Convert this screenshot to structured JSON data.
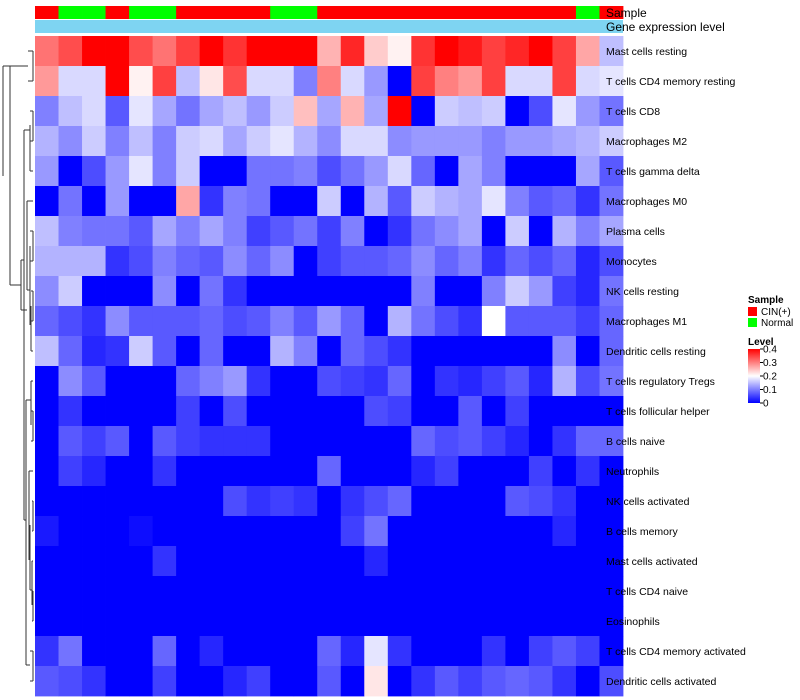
{
  "chart_data": {
    "type": "heatmap",
    "title": "",
    "annotation_labels": {
      "sample": "Sample",
      "gene_expression": "Gene expression level"
    },
    "samples": [
      "CIN(+)",
      "Normal",
      "Normal",
      "CIN(+)",
      "Normal",
      "Normal",
      "CIN(+)",
      "CIN(+)",
      "CIN(+)",
      "CIN(+)",
      "Normal",
      "Normal",
      "CIN(+)",
      "CIN(+)",
      "CIN(+)",
      "CIN(+)",
      "CIN(+)",
      "CIN(+)",
      "CIN(+)",
      "CIN(+)",
      "CIN(+)",
      "CIN(+)",
      "CIN(+)",
      "Normal",
      "CIN(+)"
    ],
    "rows": [
      "Mast cells resting",
      "T cells CD4 memory resting",
      "T cells CD8",
      "Macrophages M2",
      "T cells gamma delta",
      "Macrophages M0",
      "Plasma cells",
      "Monocytes",
      "NK cells resting",
      "Macrophages M1",
      "Dendritic cells resting",
      "T cells regulatory  Tregs",
      "T cells follicular helper",
      "B cells naive",
      "Neutrophils",
      "NK cells activated",
      "B cells memory",
      "Mast cells activated",
      "T cells CD4 naive",
      "Eosinophils",
      "T cells CD4 memory activated",
      "Dendritic cells activated"
    ],
    "values": [
      [
        0.31,
        0.34,
        0.4,
        0.4,
        0.34,
        0.31,
        0.35,
        0.4,
        0.36,
        0.4,
        0.4,
        0.4,
        0.26,
        0.37,
        0.24,
        0.21,
        0.36,
        0.4,
        0.38,
        0.35,
        0.37,
        0.4,
        0.35,
        0.27,
        0.15
      ],
      [
        0.28,
        0.17,
        0.17,
        0.4,
        0.21,
        0.35,
        0.15,
        0.22,
        0.34,
        0.17,
        0.17,
        0.1,
        0.3,
        0.17,
        0.12,
        0.0,
        0.35,
        0.3,
        0.28,
        0.35,
        0.17,
        0.17,
        0.35,
        0.17,
        0.18
      ],
      [
        0.1,
        0.15,
        0.17,
        0.07,
        0.18,
        0.13,
        0.09,
        0.13,
        0.15,
        0.12,
        0.16,
        0.25,
        0.13,
        0.26,
        0.13,
        0.4,
        0.0,
        0.16,
        0.15,
        0.16,
        0.0,
        0.06,
        0.18,
        0.12,
        0.09
      ],
      [
        0.14,
        0.11,
        0.16,
        0.1,
        0.15,
        0.1,
        0.16,
        0.17,
        0.13,
        0.16,
        0.18,
        0.14,
        0.11,
        0.17,
        0.17,
        0.11,
        0.12,
        0.12,
        0.12,
        0.1,
        0.12,
        0.12,
        0.13,
        0.14,
        0.16
      ],
      [
        0.12,
        0.0,
        0.06,
        0.12,
        0.18,
        0.1,
        0.16,
        0.0,
        0.0,
        0.09,
        0.09,
        0.1,
        0.06,
        0.09,
        0.12,
        0.17,
        0.08,
        0.0,
        0.13,
        0.1,
        0.0,
        0.0,
        0.0,
        0.13,
        0.07
      ],
      [
        0.0,
        0.09,
        0.0,
        0.12,
        0.0,
        0.0,
        0.27,
        0.04,
        0.1,
        0.09,
        0.0,
        0.0,
        0.16,
        0.0,
        0.14,
        0.07,
        0.16,
        0.14,
        0.13,
        0.18,
        0.1,
        0.07,
        0.08,
        0.04,
        0.09
      ],
      [
        0.15,
        0.1,
        0.09,
        0.09,
        0.07,
        0.13,
        0.1,
        0.13,
        0.1,
        0.05,
        0.07,
        0.09,
        0.05,
        0.1,
        0.0,
        0.04,
        0.09,
        0.11,
        0.13,
        0.0,
        0.16,
        0.0,
        0.14,
        0.1,
        0.13
      ],
      [
        0.14,
        0.14,
        0.14,
        0.04,
        0.06,
        0.1,
        0.08,
        0.07,
        0.11,
        0.08,
        0.11,
        0.0,
        0.05,
        0.07,
        0.07,
        0.08,
        0.11,
        0.08,
        0.1,
        0.04,
        0.08,
        0.06,
        0.08,
        0.03,
        0.06
      ],
      [
        0.11,
        0.16,
        0.0,
        0.0,
        0.0,
        0.11,
        0.0,
        0.09,
        0.04,
        0.0,
        0.0,
        0.0,
        0.0,
        0.0,
        0.0,
        0.0,
        0.1,
        0.0,
        0.0,
        0.1,
        0.16,
        0.12,
        0.05,
        0.03,
        0.09
      ],
      [
        0.08,
        0.06,
        0.04,
        0.11,
        0.07,
        0.07,
        0.07,
        0.08,
        0.06,
        0.07,
        0.1,
        0.07,
        0.12,
        0.08,
        0.0,
        0.14,
        0.09,
        0.06,
        0.04,
        0.2,
        0.07,
        0.07,
        0.07,
        0.05,
        0.08
      ],
      [
        0.15,
        0.08,
        0.03,
        0.04,
        0.16,
        0.07,
        0.0,
        0.08,
        0.0,
        0.0,
        0.14,
        0.1,
        0.0,
        0.08,
        0.06,
        0.04,
        0.0,
        0.0,
        0.0,
        0.0,
        0.0,
        0.0,
        0.11,
        0.0,
        0.08
      ],
      [
        0.0,
        0.11,
        0.07,
        0.0,
        0.0,
        0.0,
        0.08,
        0.1,
        0.12,
        0.04,
        0.0,
        0.0,
        0.06,
        0.05,
        0.04,
        0.08,
        0.0,
        0.04,
        0.03,
        0.05,
        0.07,
        0.03,
        0.14,
        0.06,
        0.09
      ],
      [
        0.0,
        0.04,
        0.0,
        0.0,
        0.0,
        0.0,
        0.05,
        0.0,
        0.06,
        0.0,
        0.0,
        0.0,
        0.0,
        0.0,
        0.06,
        0.05,
        0.0,
        0.0,
        0.07,
        0.0,
        0.05,
        0.0,
        0.0,
        0.0,
        0.0
      ],
      [
        0.0,
        0.07,
        0.05,
        0.07,
        0.0,
        0.07,
        0.05,
        0.04,
        0.04,
        0.04,
        0.0,
        0.0,
        0.0,
        0.0,
        0.0,
        0.0,
        0.08,
        0.06,
        0.07,
        0.05,
        0.03,
        0.0,
        0.04,
        0.08,
        0.08
      ],
      [
        0.0,
        0.05,
        0.03,
        0.0,
        0.0,
        0.04,
        0.0,
        0.0,
        0.0,
        0.0,
        0.0,
        0.0,
        0.08,
        0.0,
        0.0,
        0.0,
        0.03,
        0.05,
        0.0,
        0.0,
        0.0,
        0.05,
        0.0,
        0.04,
        0.0
      ],
      [
        0.0,
        0.0,
        0.0,
        0.0,
        0.0,
        0.0,
        0.0,
        0.0,
        0.06,
        0.04,
        0.05,
        0.04,
        0.0,
        0.04,
        0.06,
        0.08,
        0.0,
        0.0,
        0.0,
        0.0,
        0.07,
        0.06,
        0.04,
        0.0,
        0.0
      ],
      [
        0.02,
        0.0,
        0.0,
        0.0,
        0.01,
        0.0,
        0.0,
        0.0,
        0.0,
        0.0,
        0.0,
        0.0,
        0.0,
        0.05,
        0.09,
        0.0,
        0.0,
        0.0,
        0.0,
        0.0,
        0.0,
        0.0,
        0.03,
        0.0,
        0.0
      ],
      [
        0.0,
        0.0,
        0.0,
        0.0,
        0.0,
        0.04,
        0.0,
        0.0,
        0.0,
        0.0,
        0.0,
        0.0,
        0.0,
        0.0,
        0.03,
        0.0,
        0.0,
        0.0,
        0.0,
        0.0,
        0.0,
        0.0,
        0.0,
        0.0,
        0.0
      ],
      [
        0.0,
        0.0,
        0.0,
        0.0,
        0.0,
        0.0,
        0.0,
        0.0,
        0.0,
        0.0,
        0.0,
        0.0,
        0.0,
        0.0,
        0.0,
        0.0,
        0.0,
        0.0,
        0.0,
        0.0,
        0.0,
        0.0,
        0.0,
        0.0,
        0.0
      ],
      [
        0.0,
        0.0,
        0.0,
        0.0,
        0.0,
        0.0,
        0.0,
        0.0,
        0.0,
        0.0,
        0.0,
        0.0,
        0.0,
        0.0,
        0.0,
        0.0,
        0.0,
        0.0,
        0.0,
        0.0,
        0.0,
        0.0,
        0.0,
        0.0,
        0.0
      ],
      [
        0.04,
        0.09,
        0.0,
        0.0,
        0.0,
        0.08,
        0.0,
        0.03,
        0.0,
        0.0,
        0.0,
        0.0,
        0.08,
        0.03,
        0.18,
        0.04,
        0.0,
        0.0,
        0.0,
        0.04,
        0.0,
        0.05,
        0.07,
        0.05,
        0.0
      ],
      [
        0.07,
        0.06,
        0.04,
        0.0,
        0.0,
        0.05,
        0.0,
        0.0,
        0.03,
        0.05,
        0.0,
        0.0,
        0.07,
        0.0,
        0.22,
        0.0,
        0.04,
        0.07,
        0.05,
        0.07,
        0.08,
        0.07,
        0.04,
        0.0,
        0.06
      ]
    ],
    "legend": {
      "sample_title": "Sample",
      "sample_entries": [
        {
          "label": "CIN(+)",
          "color": "#ff0000"
        },
        {
          "label": "Normal",
          "color": "#00ff00"
        }
      ],
      "level_title": "Level",
      "level_ticks": [
        "0.4",
        "0.3",
        "0.2",
        "0.1",
        "0"
      ],
      "level_range": [
        0,
        0.4
      ]
    },
    "colors": {
      "low": "#0000ff",
      "mid": "#ffffff",
      "high": "#ff0000",
      "expression_bar": "#7ed4f2"
    }
  }
}
